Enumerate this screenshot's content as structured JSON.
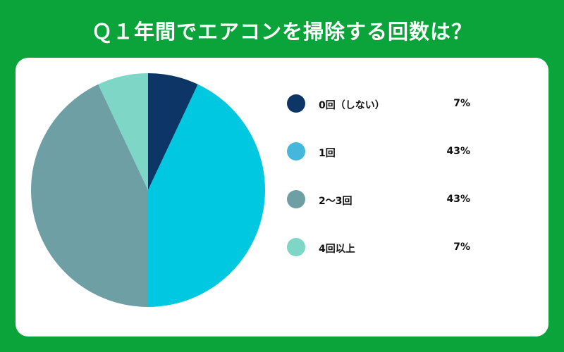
{
  "title": "Ｑ１年間でエアコンを掃除する回数は？",
  "chart_data": {
    "type": "pie",
    "title": "Ｑ１年間でエアコンを掃除する回数は？",
    "categories": [
      "0回（しない）",
      "1回",
      "2〜3回",
      "4回以上"
    ],
    "values": [
      7,
      43,
      43,
      7
    ],
    "value_labels": [
      "7%",
      "43%",
      "43%",
      "7%"
    ],
    "colors": [
      "#0d3566",
      "#00c8e0",
      "#6d9fa4",
      "#7dd6c6"
    ],
    "legend_colors": [
      "#0d3566",
      "#45b7dd",
      "#6d9fa4",
      "#7dd6c6"
    ],
    "legend_position": "right",
    "start": "12 o'clock",
    "direction": "clockwise"
  }
}
